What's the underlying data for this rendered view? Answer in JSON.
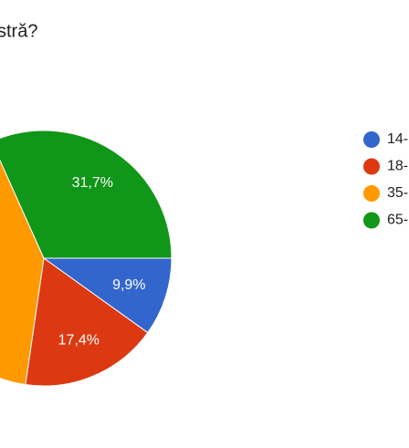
{
  "chart_data": {
    "type": "pie",
    "title": "stră?",
    "categories": [
      "14-",
      "18-",
      "35-",
      "65-"
    ],
    "values": [
      9.9,
      17.4,
      41.0,
      31.7
    ],
    "value_labels": [
      "9,9%",
      "17,4%",
      null,
      "31,7%"
    ],
    "colors": [
      "#3366cc",
      "#dc3912",
      "#ff9900",
      "#109618"
    ]
  }
}
